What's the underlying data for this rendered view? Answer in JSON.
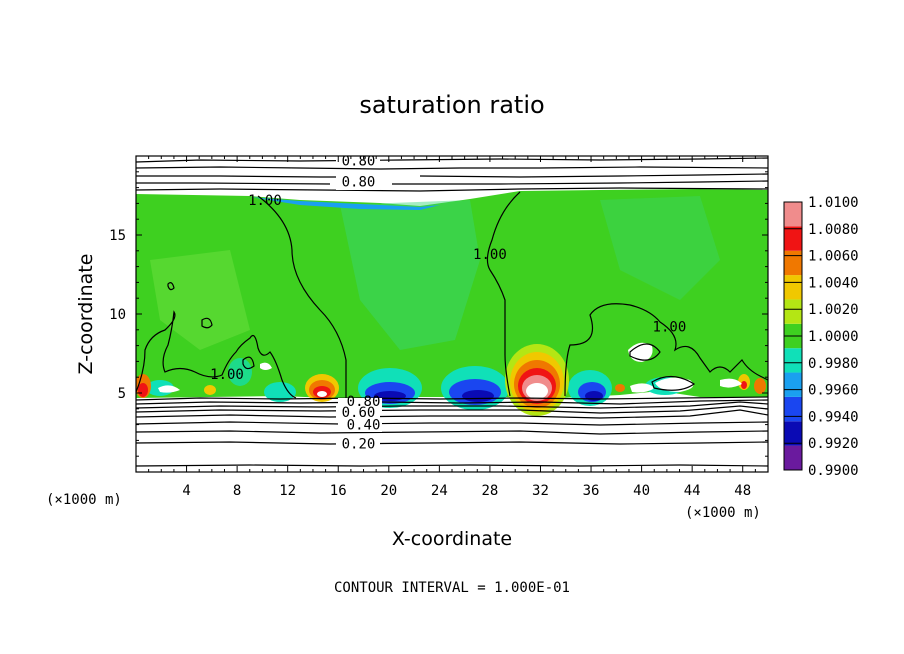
{
  "chart_data": {
    "type": "heatmap",
    "title": "saturation ratio",
    "xlabel": "X-coordinate",
    "ylabel": "Z-coordinate",
    "x_unit": "(×1000 m)",
    "xlim": [
      0,
      50
    ],
    "ylim": [
      0,
      20
    ],
    "x_ticks": [
      4,
      8,
      12,
      16,
      20,
      24,
      28,
      32,
      36,
      40,
      44,
      48
    ],
    "y_ticks": [
      5,
      10,
      15
    ],
    "colorbar": {
      "levels": [
        "0.9900",
        "0.9920",
        "0.9940",
        "0.9960",
        "0.9980",
        "1.0000",
        "1.0020",
        "1.0040",
        "1.0060",
        "1.0080",
        "1.0100"
      ],
      "colors": [
        "#6a1a9e",
        "#0a0ab4",
        "#1a46f0",
        "#1aa0f0",
        "#10e0b8",
        "#3ed020",
        "#b4e614",
        "#f0c800",
        "#f07800",
        "#f01414",
        "#f08c8c"
      ]
    },
    "contour_labels": [
      {
        "text": "0.80",
        "x": 17.6,
        "z": 19.7
      },
      {
        "text": "0.80",
        "x": 17.6,
        "z": 18.4
      },
      {
        "text": "1.00",
        "x": 10.2,
        "z": 17.2
      },
      {
        "text": "1.00",
        "x": 28.0,
        "z": 13.8
      },
      {
        "text": "1.00",
        "x": 42.2,
        "z": 9.2
      },
      {
        "text": "1.00",
        "x": 7.2,
        "z": 6.2
      },
      {
        "text": "0.80",
        "x": 18.0,
        "z": 4.5
      },
      {
        "text": "0.60",
        "x": 17.6,
        "z": 3.8
      },
      {
        "text": "0.40",
        "x": 18.0,
        "z": 3.0
      },
      {
        "text": "0.20",
        "x": 17.6,
        "z": 1.8
      }
    ],
    "contour_interval": "CONTOUR INTERVAL = 1.000E-01"
  }
}
